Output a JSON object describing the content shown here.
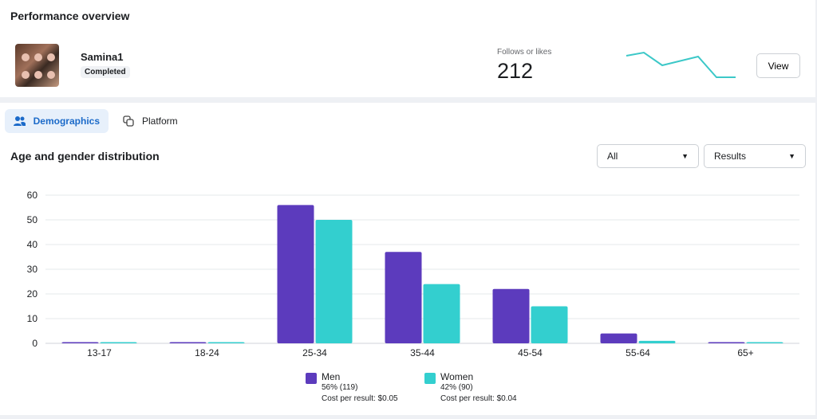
{
  "header": {
    "title": "Performance overview"
  },
  "post": {
    "name": "Samina1",
    "status": "Completed",
    "metric_label": "Follows or likes",
    "metric_value": "212",
    "view_label": "View"
  },
  "tabs": [
    {
      "label": "Demographics",
      "icon": "people-icon",
      "active": true
    },
    {
      "label": "Platform",
      "icon": "platform-icon",
      "active": false
    }
  ],
  "section": {
    "title": "Age and gender distribution",
    "filter1": "All",
    "filter2": "Results"
  },
  "colors": {
    "men": "#5c3bbd",
    "women": "#33cfcf",
    "accent": "#1b6ac9",
    "sparkline": "#3cc8c8"
  },
  "legend": [
    {
      "name": "Men",
      "pct": "56% (119)",
      "cost": "Cost per result: $0.05"
    },
    {
      "name": "Women",
      "pct": "42% (90)",
      "cost": "Cost per result: $0.04"
    }
  ],
  "chart_data": {
    "type": "bar",
    "categories": [
      "13-17",
      "18-24",
      "25-34",
      "35-44",
      "45-54",
      "55-64",
      "65+"
    ],
    "series": [
      {
        "name": "Men",
        "values": [
          0,
          0,
          56,
          37,
          22,
          4,
          0
        ]
      },
      {
        "name": "Women",
        "values": [
          0,
          0,
          50,
          24,
          15,
          1,
          0
        ]
      }
    ],
    "yticks": [
      0,
      10,
      20,
      30,
      40,
      50,
      60
    ],
    "ylim": [
      0,
      60
    ],
    "grid": true,
    "legend": "bottom"
  }
}
